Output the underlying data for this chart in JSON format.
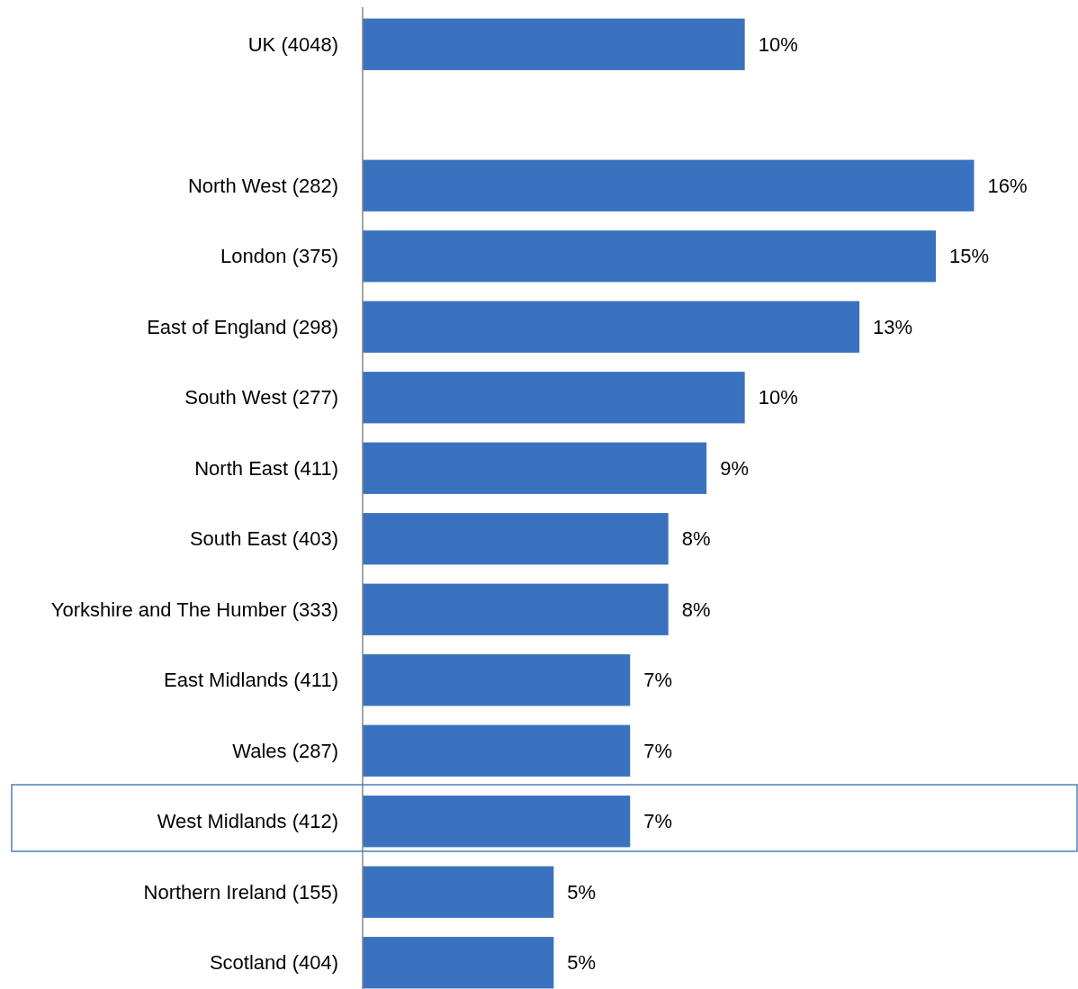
{
  "chart_data": {
    "type": "bar",
    "orientation": "horizontal",
    "categories": [
      "UK (4048)",
      null,
      "North West (282)",
      "London (375)",
      "East of England (298)",
      "South West (277)",
      "North East (411)",
      "South East (403)",
      "Yorkshire and The Humber (333)",
      "East Midlands (411)",
      "Wales (287)",
      "West Midlands (412)",
      "Northern Ireland (155)",
      "Scotland (404)"
    ],
    "values": [
      10,
      null,
      16,
      15,
      13,
      10,
      9,
      8,
      8,
      7,
      7,
      7,
      5,
      5
    ],
    "value_labels": [
      "10%",
      null,
      "16%",
      "15%",
      "13%",
      "10%",
      "9%",
      "8%",
      "8%",
      "7%",
      "7%",
      "7%",
      "5%",
      "5%"
    ],
    "color": "#3a72bf"
  }
}
